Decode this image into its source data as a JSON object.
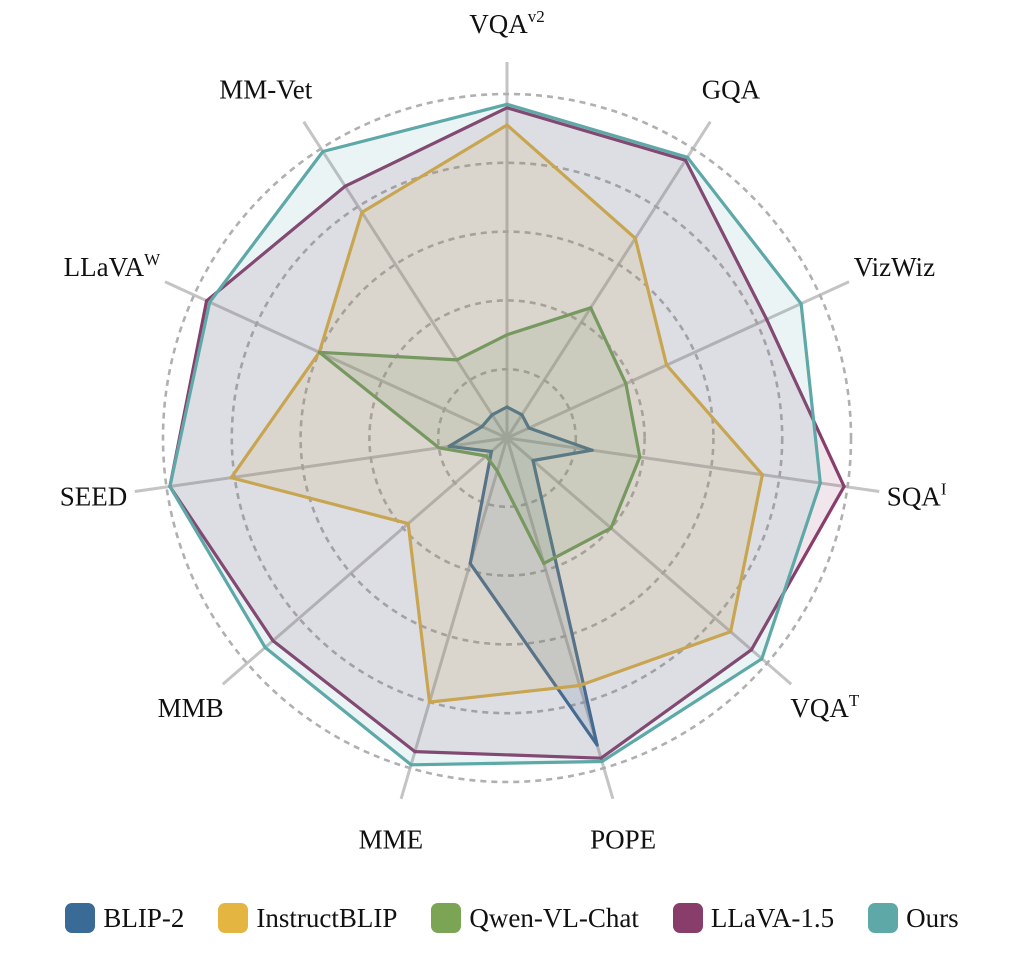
{
  "chart_data": {
    "type": "radar",
    "axes": [
      {
        "name": "VQA",
        "sup": "v2"
      },
      {
        "name": "GQA",
        "sup": ""
      },
      {
        "name": "VizWiz",
        "sup": ""
      },
      {
        "name": "SQA",
        "sup": "I"
      },
      {
        "name": "VQA",
        "sup": "T"
      },
      {
        "name": "POPE",
        "sup": ""
      },
      {
        "name": "MME",
        "sup": ""
      },
      {
        "name": "MMB",
        "sup": ""
      },
      {
        "name": "SEED",
        "sup": ""
      },
      {
        "name": "LLaVA",
        "sup": "W"
      },
      {
        "name": "MM-Vet",
        "sup": ""
      }
    ],
    "rlim": [
      0,
      1
    ],
    "grid_rings": [
      0.2,
      0.4,
      0.6,
      0.8,
      1.0
    ],
    "series": [
      {
        "name": "BLIP-2",
        "color": "#3a6a96",
        "fill_opacity": 0.14,
        "values": [
          0.09,
          0.08,
          0.07,
          0.25,
          0.1,
          0.93,
          0.38,
          0.06,
          0.17,
          0.08,
          0.08
        ]
      },
      {
        "name": "InstructBLIP",
        "color": "#e4b540",
        "fill_opacity": 0.14,
        "values": [
          0.91,
          0.69,
          0.51,
          0.75,
          0.86,
          0.75,
          0.8,
          0.38,
          0.81,
          0.6,
          0.78
        ]
      },
      {
        "name": "Qwen-VL-Chat",
        "color": "#7ba555",
        "fill_opacity": 0.14,
        "values": [
          0.3,
          0.45,
          0.38,
          0.39,
          0.4,
          0.38,
          0.1,
          0.08,
          0.2,
          0.6,
          0.27
        ]
      },
      {
        "name": "LLaVA-1.5",
        "color": "#883d6b",
        "fill_opacity": 0.13,
        "values": [
          0.96,
          0.96,
          0.83,
          0.99,
          0.94,
          0.97,
          0.95,
          0.9,
          0.99,
          0.96,
          0.87
        ]
      },
      {
        "name": "Ours",
        "color": "#5ea8a8",
        "fill_opacity": 0.12,
        "values": [
          0.97,
          0.97,
          0.94,
          0.92,
          0.98,
          0.98,
          0.99,
          0.93,
          0.99,
          0.95,
          0.99
        ]
      }
    ],
    "legend_position": "bottom"
  }
}
